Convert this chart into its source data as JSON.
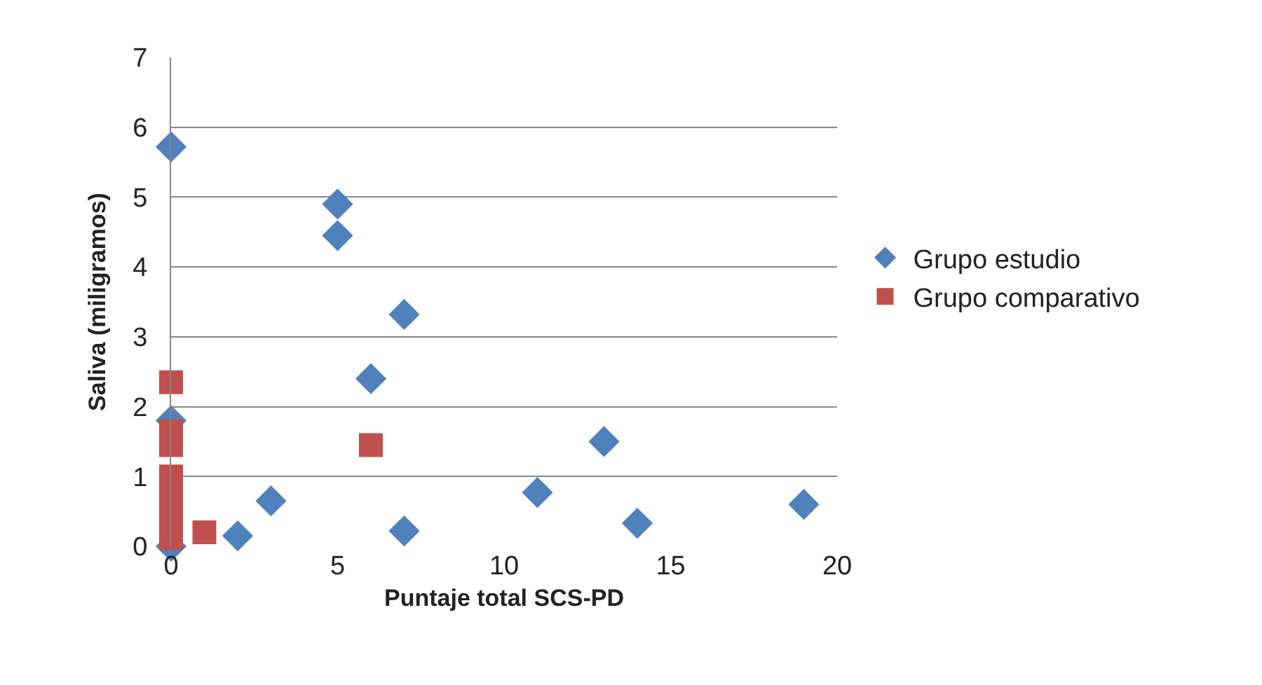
{
  "chart_data": {
    "type": "scatter",
    "xlabel": "Puntaje total SCS-PD",
    "ylabel": "Saliva (miligramos)",
    "xlim": [
      0,
      20
    ],
    "xticks": [
      0,
      5,
      10,
      15,
      20
    ],
    "ylim": [
      0,
      7
    ],
    "yticks": [
      0,
      1,
      2,
      3,
      4,
      5,
      6,
      7
    ],
    "grid": "y",
    "legend": "right",
    "series": [
      {
        "name": "Grupo estudio",
        "color": "#4f81bd",
        "marker": "diamond",
        "x": [
          0,
          5,
          5,
          7,
          6,
          0,
          3,
          2,
          7,
          11,
          13,
          14,
          19,
          0
        ],
        "values": [
          5.72,
          4.9,
          4.45,
          3.32,
          2.4,
          1.8,
          0.65,
          0.15,
          0.22,
          0.77,
          1.5,
          0.33,
          0.6,
          0
        ]
      },
      {
        "name": "Grupo comparativo",
        "color": "#c0504d",
        "marker": "square",
        "x": [
          0,
          0,
          0,
          0,
          0,
          0,
          0,
          1,
          6
        ],
        "values": [
          2.35,
          1.65,
          1.45,
          1.0,
          0.7,
          0.4,
          0.12,
          0.2,
          1.45
        ]
      }
    ]
  }
}
